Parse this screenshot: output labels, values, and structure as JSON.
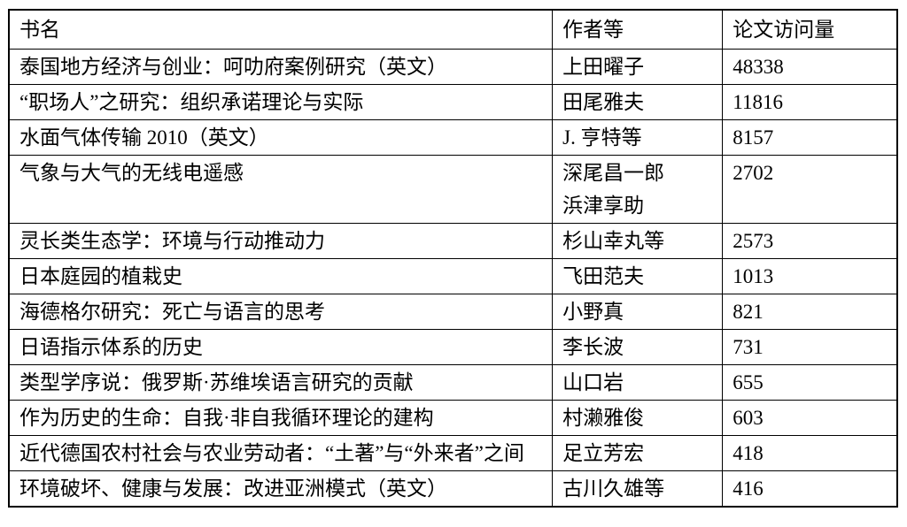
{
  "style": {
    "background": "#ffffff",
    "text_color": "#000000",
    "border_color": "#000000"
  },
  "table": {
    "columns": [
      "书名",
      "作者等",
      "论文访问量"
    ],
    "rows": [
      {
        "title": "泰国地方经济与创业：呵叻府案例研究（英文）",
        "authors": [
          "上田曜子"
        ],
        "visits": "48338"
      },
      {
        "title": "“职场人”之研究：组织承诺理论与实际",
        "authors": [
          "田尾雅夫"
        ],
        "visits": "11816"
      },
      {
        "title": "水面气体传输 2010（英文）",
        "authors": [
          "J. 亨特等"
        ],
        "visits": "8157"
      },
      {
        "title": "气象与大气的无线电遥感",
        "authors": [
          "深尾昌一郎",
          "浜津享助"
        ],
        "visits": "2702"
      },
      {
        "title": "灵长类生态学：环境与行动推动力",
        "authors": [
          "杉山幸丸等"
        ],
        "visits": "2573"
      },
      {
        "title": "日本庭园的植栽史",
        "authors": [
          "飞田范夫"
        ],
        "visits": "1013"
      },
      {
        "title": "海德格尔研究：死亡与语言的思考",
        "authors": [
          "小野真"
        ],
        "visits": "821"
      },
      {
        "title": "日语指示体系的历史",
        "authors": [
          "李长波"
        ],
        "visits": "731"
      },
      {
        "title": "类型学序说：俄罗斯·苏维埃语言研究的贡献",
        "authors": [
          "山口岩"
        ],
        "visits": "655"
      },
      {
        "title": "作为历史的生命：自我·非自我循环理论的建构",
        "authors": [
          "村濑雅俊"
        ],
        "visits": "603"
      },
      {
        "title": "近代德国农村社会与农业劳动者：“土著”与“外来者”之间",
        "authors": [
          "足立芳宏"
        ],
        "visits": "418"
      },
      {
        "title": "环境破坏、健康与发展：改进亚洲模式（英文）",
        "authors": [
          "古川久雄等"
        ],
        "visits": "416"
      }
    ]
  }
}
